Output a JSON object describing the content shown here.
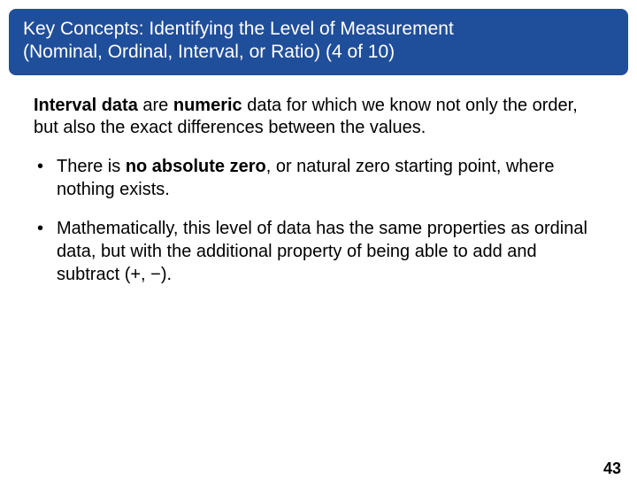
{
  "header": {
    "title_line1": "Key Concepts: Identifying the Level of Measurement",
    "title_line2": "(Nominal, Ordinal, Interval, or Ratio) (4 of 10)"
  },
  "intro": {
    "bold1": "Interval data",
    "mid1": " are ",
    "bold2": "numeric",
    "rest": " data for which we know not only the order, but also the exact differences between the values."
  },
  "bullets": [
    {
      "pre": "There is ",
      "bold": "no absolute zero",
      "post": ", or natural zero starting point, where nothing exists."
    },
    {
      "pre": "",
      "bold": "",
      "post": "Mathematically, this level of data has the same properties as ordinal data, but with the additional property of being able to add and subtract (+, −)."
    }
  ],
  "page_number": "43",
  "colors": {
    "header_bg": "#1f4e9b",
    "header_text": "#ffffff",
    "body_text": "#000000",
    "page_bg": "#ffffff"
  }
}
